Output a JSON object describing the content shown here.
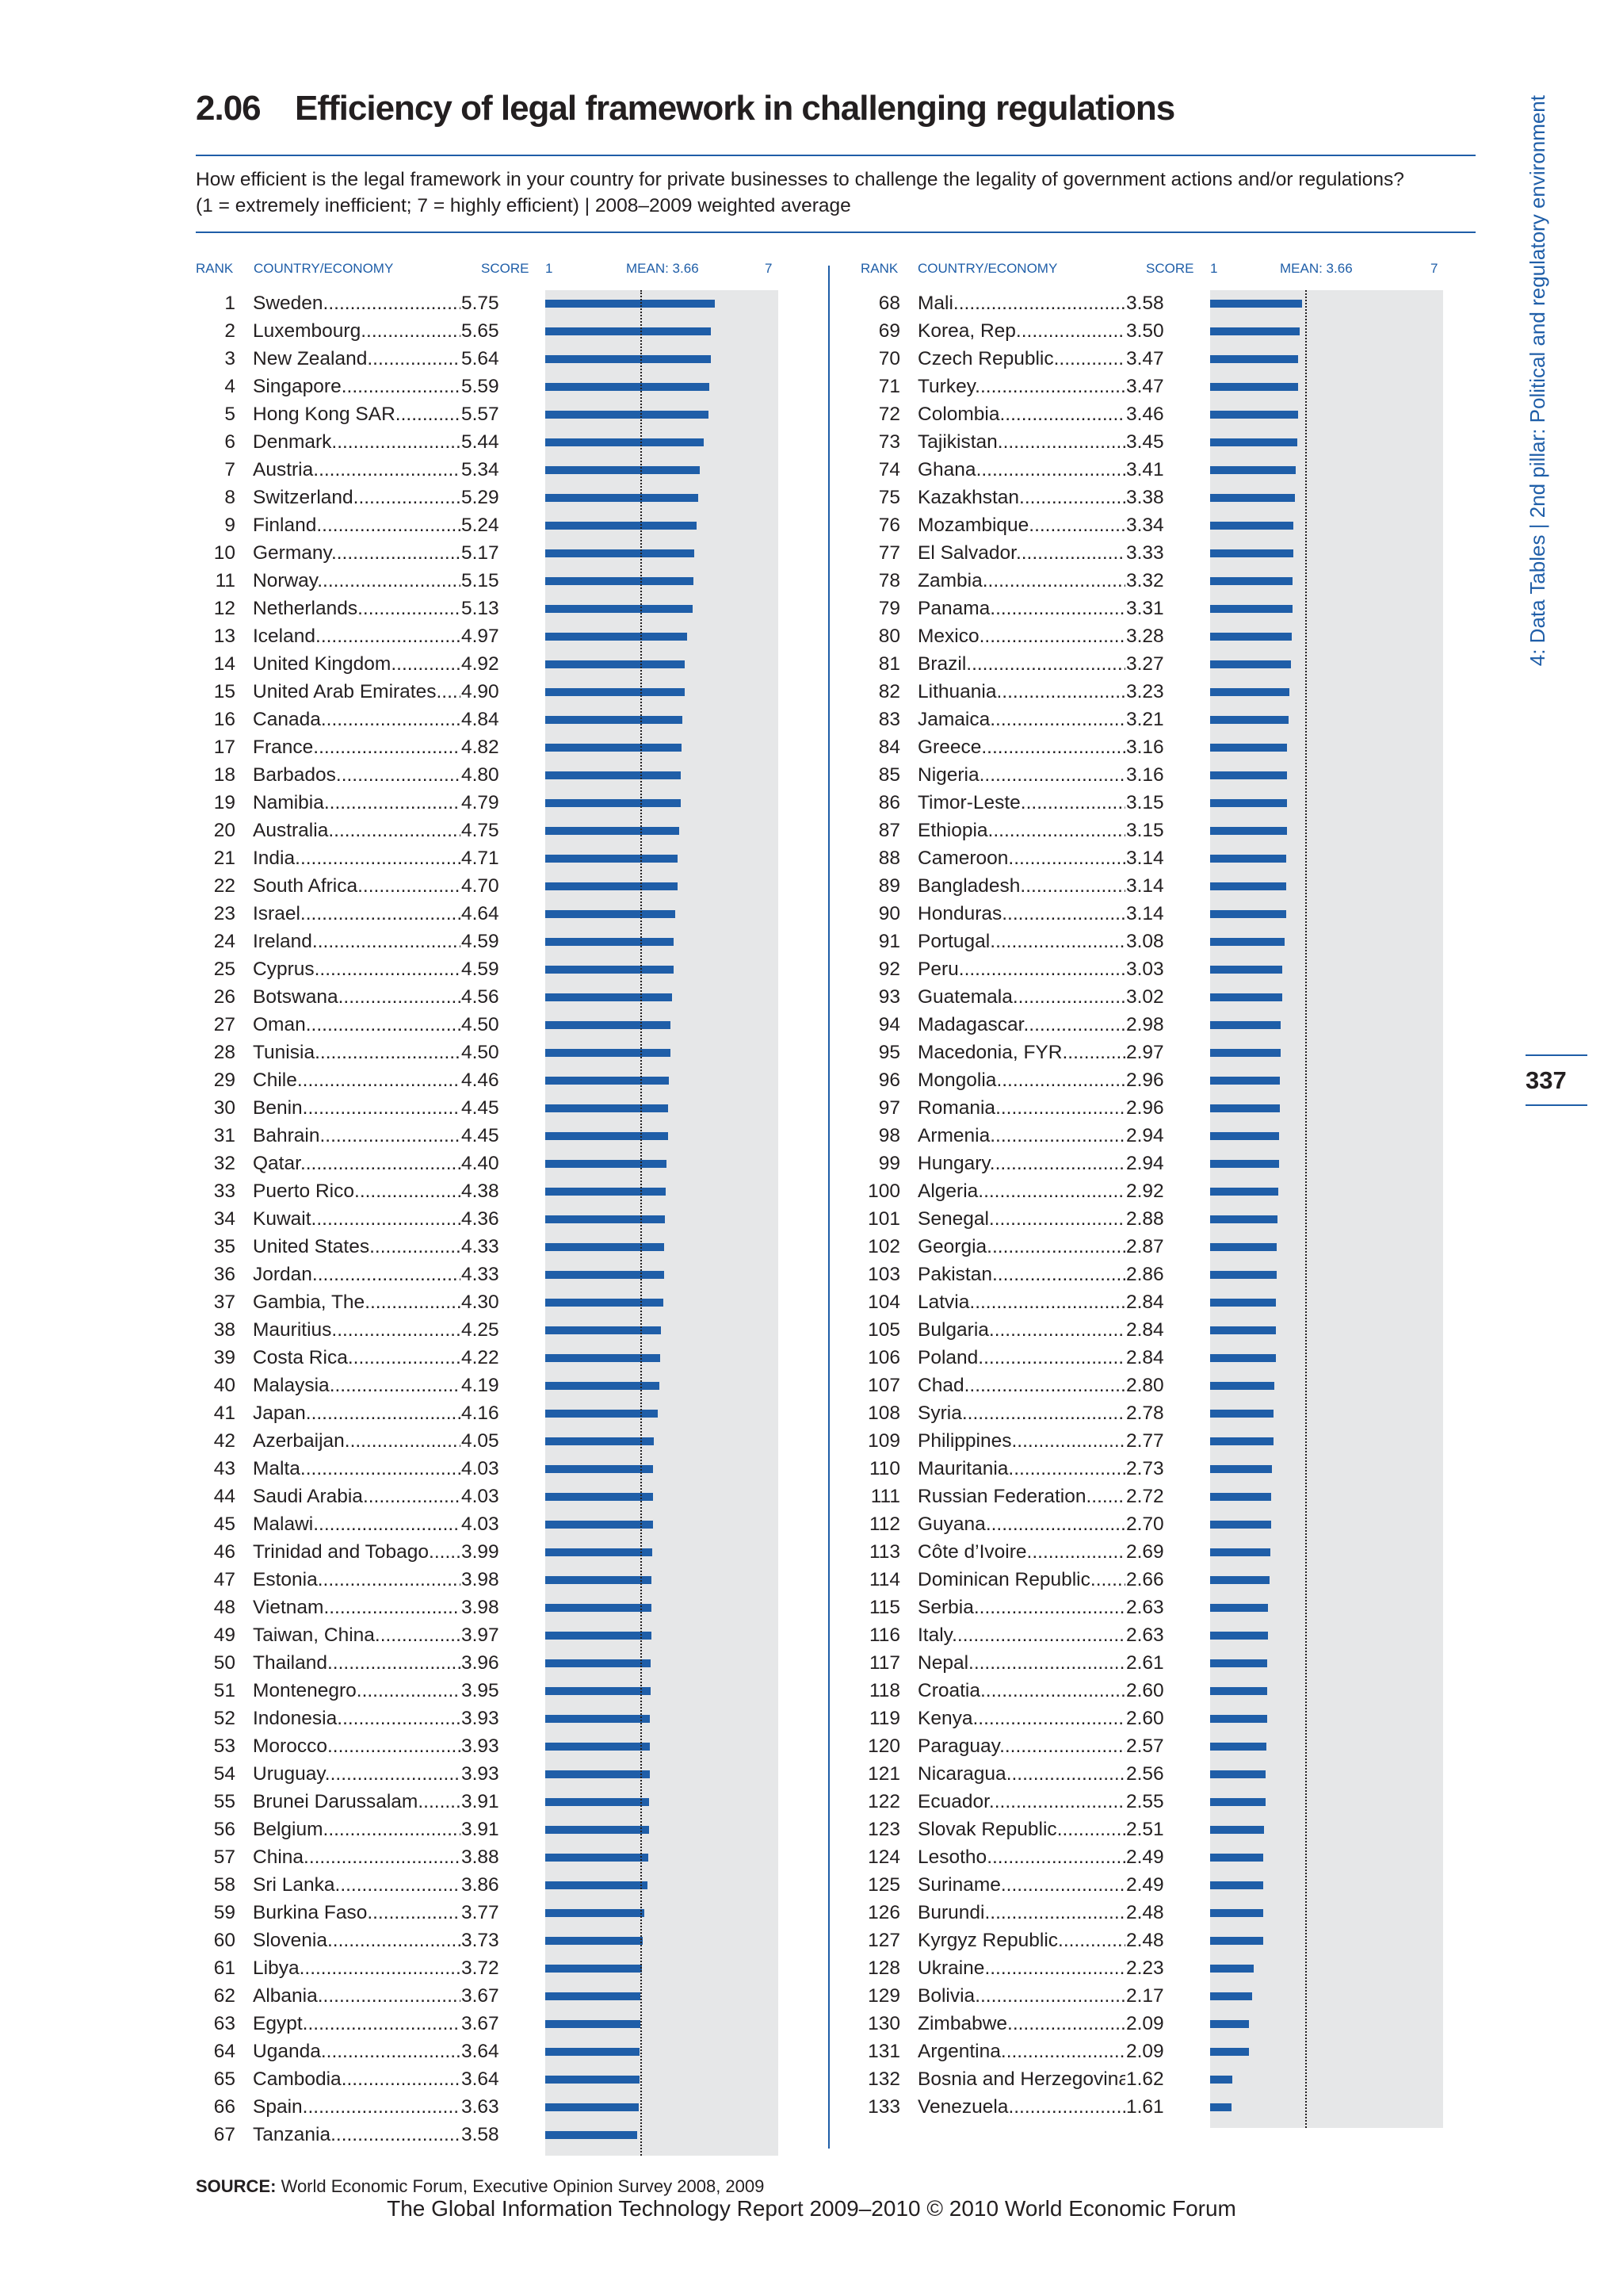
{
  "header": {
    "number": "2.06",
    "title": "Efficiency of legal framework in challenging regulations",
    "question_line1": "How efficient is the legal framework in your country for private businesses to challenge the legality of government actions and/or regulations?",
    "question_line2": "(1 = extremely inefficient; 7 = highly efficient) | 2008–2009 weighted average"
  },
  "columns": {
    "rank": "RANK",
    "country": "COUNTRY/ECONOMY",
    "score": "SCORE",
    "scale_min": "1",
    "mean_label": "MEAN: 3.66",
    "scale_max": "7"
  },
  "side": {
    "text": "4: Data Tables  |  2nd pillar: Political and regulatory environment",
    "page_number": "337"
  },
  "source": {
    "label": "SOURCE:",
    "text": "World Economic Forum, Executive Opinion Survey 2008, 2009"
  },
  "footer": {
    "text": "The Global Information Technology Report 2009–2010 © 2010 World Economic Forum"
  },
  "chart_data": {
    "type": "bar",
    "orientation": "horizontal",
    "xlim": [
      1,
      7
    ],
    "mean": 3.66,
    "rows": [
      {
        "rank": "1",
        "country": "Sweden",
        "score": "5.75"
      },
      {
        "rank": "2",
        "country": "Luxembourg",
        "score": "5.65"
      },
      {
        "rank": "3",
        "country": "New Zealand",
        "score": "5.64"
      },
      {
        "rank": "4",
        "country": "Singapore",
        "score": "5.59"
      },
      {
        "rank": "5",
        "country": "Hong Kong SAR",
        "score": "5.57"
      },
      {
        "rank": "6",
        "country": "Denmark",
        "score": "5.44"
      },
      {
        "rank": "7",
        "country": "Austria",
        "score": "5.34"
      },
      {
        "rank": "8",
        "country": "Switzerland",
        "score": "5.29"
      },
      {
        "rank": "9",
        "country": "Finland",
        "score": "5.24"
      },
      {
        "rank": "10",
        "country": "Germany",
        "score": "5.17"
      },
      {
        "rank": "11",
        "country": "Norway",
        "score": "5.15"
      },
      {
        "rank": "12",
        "country": "Netherlands",
        "score": "5.13"
      },
      {
        "rank": "13",
        "country": "Iceland",
        "score": "4.97"
      },
      {
        "rank": "14",
        "country": "United Kingdom",
        "score": "4.92"
      },
      {
        "rank": "15",
        "country": "United Arab Emirates",
        "score": "4.90"
      },
      {
        "rank": "16",
        "country": "Canada",
        "score": "4.84"
      },
      {
        "rank": "17",
        "country": "France",
        "score": "4.82"
      },
      {
        "rank": "18",
        "country": "Barbados",
        "score": "4.80"
      },
      {
        "rank": "19",
        "country": "Namibia",
        "score": "4.79"
      },
      {
        "rank": "20",
        "country": "Australia",
        "score": "4.75"
      },
      {
        "rank": "21",
        "country": "India",
        "score": "4.71"
      },
      {
        "rank": "22",
        "country": "South Africa",
        "score": "4.70"
      },
      {
        "rank": "23",
        "country": "Israel",
        "score": "4.64"
      },
      {
        "rank": "24",
        "country": "Ireland",
        "score": "4.59"
      },
      {
        "rank": "25",
        "country": "Cyprus",
        "score": "4.59"
      },
      {
        "rank": "26",
        "country": "Botswana",
        "score": "4.56"
      },
      {
        "rank": "27",
        "country": "Oman",
        "score": "4.50"
      },
      {
        "rank": "28",
        "country": "Tunisia",
        "score": "4.50"
      },
      {
        "rank": "29",
        "country": "Chile",
        "score": "4.46"
      },
      {
        "rank": "30",
        "country": "Benin",
        "score": "4.45"
      },
      {
        "rank": "31",
        "country": "Bahrain",
        "score": "4.45"
      },
      {
        "rank": "32",
        "country": "Qatar",
        "score": "4.40"
      },
      {
        "rank": "33",
        "country": "Puerto Rico",
        "score": "4.38"
      },
      {
        "rank": "34",
        "country": "Kuwait",
        "score": "4.36"
      },
      {
        "rank": "35",
        "country": "United States",
        "score": "4.33"
      },
      {
        "rank": "36",
        "country": "Jordan",
        "score": "4.33"
      },
      {
        "rank": "37",
        "country": "Gambia, The",
        "score": "4.30"
      },
      {
        "rank": "38",
        "country": "Mauritius",
        "score": "4.25"
      },
      {
        "rank": "39",
        "country": "Costa Rica",
        "score": "4.22"
      },
      {
        "rank": "40",
        "country": "Malaysia",
        "score": "4.19"
      },
      {
        "rank": "41",
        "country": "Japan",
        "score": "4.16"
      },
      {
        "rank": "42",
        "country": "Azerbaijan",
        "score": "4.05"
      },
      {
        "rank": "43",
        "country": "Malta",
        "score": "4.03"
      },
      {
        "rank": "44",
        "country": "Saudi Arabia",
        "score": "4.03"
      },
      {
        "rank": "45",
        "country": "Malawi",
        "score": "4.03"
      },
      {
        "rank": "46",
        "country": "Trinidad and Tobago",
        "score": "3.99"
      },
      {
        "rank": "47",
        "country": "Estonia",
        "score": "3.98"
      },
      {
        "rank": "48",
        "country": "Vietnam",
        "score": "3.98"
      },
      {
        "rank": "49",
        "country": "Taiwan, China",
        "score": "3.97"
      },
      {
        "rank": "50",
        "country": "Thailand",
        "score": "3.96"
      },
      {
        "rank": "51",
        "country": "Montenegro",
        "score": "3.95"
      },
      {
        "rank": "52",
        "country": "Indonesia",
        "score": "3.93"
      },
      {
        "rank": "53",
        "country": "Morocco",
        "score": "3.93"
      },
      {
        "rank": "54",
        "country": "Uruguay",
        "score": "3.93"
      },
      {
        "rank": "55",
        "country": "Brunei Darussalam",
        "score": "3.91"
      },
      {
        "rank": "56",
        "country": "Belgium",
        "score": "3.91"
      },
      {
        "rank": "57",
        "country": "China",
        "score": "3.88"
      },
      {
        "rank": "58",
        "country": "Sri Lanka",
        "score": "3.86"
      },
      {
        "rank": "59",
        "country": "Burkina Faso",
        "score": "3.77"
      },
      {
        "rank": "60",
        "country": "Slovenia",
        "score": "3.73"
      },
      {
        "rank": "61",
        "country": "Libya",
        "score": "3.72"
      },
      {
        "rank": "62",
        "country": "Albania",
        "score": "3.67"
      },
      {
        "rank": "63",
        "country": "Egypt",
        "score": "3.67"
      },
      {
        "rank": "64",
        "country": "Uganda",
        "score": "3.64"
      },
      {
        "rank": "65",
        "country": "Cambodia",
        "score": "3.64"
      },
      {
        "rank": "66",
        "country": "Spain",
        "score": "3.63"
      },
      {
        "rank": "67",
        "country": "Tanzania",
        "score": "3.58"
      },
      {
        "rank": "68",
        "country": "Mali",
        "score": "3.58"
      },
      {
        "rank": "69",
        "country": "Korea, Rep.",
        "score": "3.50"
      },
      {
        "rank": "70",
        "country": "Czech Republic",
        "score": "3.47"
      },
      {
        "rank": "71",
        "country": "Turkey",
        "score": "3.47"
      },
      {
        "rank": "72",
        "country": "Colombia",
        "score": "3.46"
      },
      {
        "rank": "73",
        "country": "Tajikistan",
        "score": "3.45"
      },
      {
        "rank": "74",
        "country": "Ghana",
        "score": "3.41"
      },
      {
        "rank": "75",
        "country": "Kazakhstan",
        "score": "3.38"
      },
      {
        "rank": "76",
        "country": "Mozambique",
        "score": "3.34"
      },
      {
        "rank": "77",
        "country": "El Salvador",
        "score": "3.33"
      },
      {
        "rank": "78",
        "country": "Zambia",
        "score": "3.32"
      },
      {
        "rank": "79",
        "country": "Panama",
        "score": "3.31"
      },
      {
        "rank": "80",
        "country": "Mexico",
        "score": "3.28"
      },
      {
        "rank": "81",
        "country": "Brazil",
        "score": "3.27"
      },
      {
        "rank": "82",
        "country": "Lithuania",
        "score": "3.23"
      },
      {
        "rank": "83",
        "country": "Jamaica",
        "score": "3.21"
      },
      {
        "rank": "84",
        "country": "Greece",
        "score": "3.16"
      },
      {
        "rank": "85",
        "country": "Nigeria",
        "score": "3.16"
      },
      {
        "rank": "86",
        "country": "Timor-Leste",
        "score": "3.15"
      },
      {
        "rank": "87",
        "country": "Ethiopia",
        "score": "3.15"
      },
      {
        "rank": "88",
        "country": "Cameroon",
        "score": "3.14"
      },
      {
        "rank": "89",
        "country": "Bangladesh",
        "score": "3.14"
      },
      {
        "rank": "90",
        "country": "Honduras",
        "score": "3.14"
      },
      {
        "rank": "91",
        "country": "Portugal",
        "score": "3.08"
      },
      {
        "rank": "92",
        "country": "Peru",
        "score": "3.03"
      },
      {
        "rank": "93",
        "country": "Guatemala",
        "score": "3.02"
      },
      {
        "rank": "94",
        "country": "Madagascar",
        "score": "2.98"
      },
      {
        "rank": "95",
        "country": "Macedonia, FYR",
        "score": "2.97"
      },
      {
        "rank": "96",
        "country": "Mongolia",
        "score": "2.96"
      },
      {
        "rank": "97",
        "country": "Romania",
        "score": "2.96"
      },
      {
        "rank": "98",
        "country": "Armenia",
        "score": "2.94"
      },
      {
        "rank": "99",
        "country": "Hungary",
        "score": "2.94"
      },
      {
        "rank": "100",
        "country": "Algeria",
        "score": "2.92"
      },
      {
        "rank": "101",
        "country": "Senegal",
        "score": "2.88"
      },
      {
        "rank": "102",
        "country": "Georgia",
        "score": "2.87"
      },
      {
        "rank": "103",
        "country": "Pakistan",
        "score": "2.86"
      },
      {
        "rank": "104",
        "country": "Latvia",
        "score": "2.84"
      },
      {
        "rank": "105",
        "country": "Bulgaria",
        "score": "2.84"
      },
      {
        "rank": "106",
        "country": "Poland",
        "score": "2.84"
      },
      {
        "rank": "107",
        "country": "Chad",
        "score": "2.80"
      },
      {
        "rank": "108",
        "country": "Syria",
        "score": "2.78"
      },
      {
        "rank": "109",
        "country": "Philippines",
        "score": "2.77"
      },
      {
        "rank": "110",
        "country": "Mauritania",
        "score": "2.73"
      },
      {
        "rank": "111",
        "country": "Russian Federation",
        "score": "2.72"
      },
      {
        "rank": "112",
        "country": "Guyana",
        "score": "2.70"
      },
      {
        "rank": "113",
        "country": "Côte d’Ivoire",
        "score": "2.69"
      },
      {
        "rank": "114",
        "country": "Dominican Republic",
        "score": "2.66"
      },
      {
        "rank": "115",
        "country": "Serbia",
        "score": "2.63"
      },
      {
        "rank": "116",
        "country": "Italy",
        "score": "2.63"
      },
      {
        "rank": "117",
        "country": "Nepal",
        "score": "2.61"
      },
      {
        "rank": "118",
        "country": "Croatia",
        "score": "2.60"
      },
      {
        "rank": "119",
        "country": "Kenya",
        "score": "2.60"
      },
      {
        "rank": "120",
        "country": "Paraguay",
        "score": "2.57"
      },
      {
        "rank": "121",
        "country": "Nicaragua",
        "score": "2.56"
      },
      {
        "rank": "122",
        "country": "Ecuador",
        "score": "2.55"
      },
      {
        "rank": "123",
        "country": "Slovak Republic",
        "score": "2.51"
      },
      {
        "rank": "124",
        "country": "Lesotho",
        "score": "2.49"
      },
      {
        "rank": "125",
        "country": "Suriname",
        "score": "2.49"
      },
      {
        "rank": "126",
        "country": "Burundi",
        "score": "2.48"
      },
      {
        "rank": "127",
        "country": "Kyrgyz Republic",
        "score": "2.48"
      },
      {
        "rank": "128",
        "country": "Ukraine",
        "score": "2.23"
      },
      {
        "rank": "129",
        "country": "Bolivia",
        "score": "2.17"
      },
      {
        "rank": "130",
        "country": "Zimbabwe",
        "score": "2.09"
      },
      {
        "rank": "131",
        "country": "Argentina",
        "score": "2.09"
      },
      {
        "rank": "132",
        "country": "Bosnia and Herzegovina",
        "score": "1.62"
      },
      {
        "rank": "133",
        "country": "Venezuela",
        "score": "1.61"
      }
    ]
  }
}
